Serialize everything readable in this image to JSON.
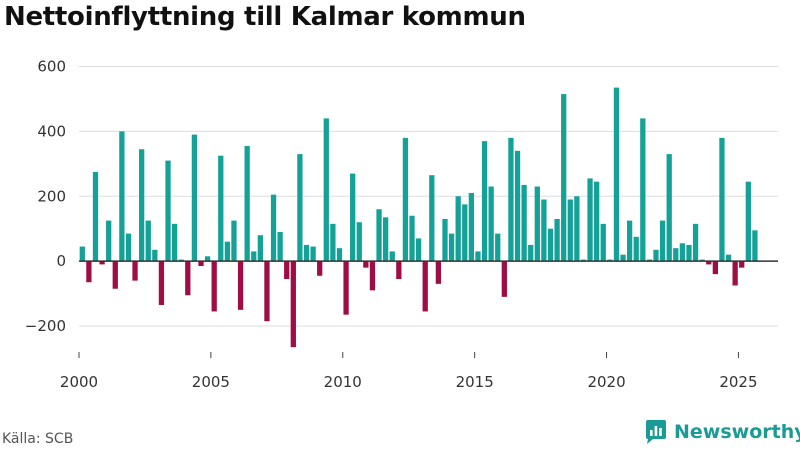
{
  "title": "Nettoinflyttning till Kalmar kommun",
  "source": "Källa: SCB",
  "brand": {
    "name": "Newsworthy",
    "icon": "newsworthy-logo-icon",
    "color": "#1a9b95"
  },
  "colors": {
    "positive": "#14a298",
    "negative": "#9e0e45",
    "grid": "#dddddd",
    "zero": "#333333"
  },
  "chart_data": {
    "type": "bar",
    "frequency": "quarterly",
    "title": "Nettoinflyttning till Kalmar kommun",
    "xlabel": "",
    "ylabel": "",
    "ylim": [
      -280,
      620
    ],
    "yticks": [
      -200,
      0,
      200,
      400,
      600
    ],
    "ytick_labels": [
      "−200",
      "0",
      "200",
      "400",
      "600"
    ],
    "xlim": [
      2000,
      2026.5
    ],
    "xticks": [
      2000,
      2005,
      2010,
      2015,
      2020,
      2025
    ],
    "xtick_labels": [
      "2000",
      "2005",
      "2010",
      "2015",
      "2020",
      "2025"
    ],
    "grid": "horizontal",
    "start_period": "2000 Q1",
    "values": [
      45,
      -65,
      275,
      -10,
      125,
      -85,
      400,
      85,
      -60,
      345,
      125,
      35,
      -135,
      310,
      115,
      5,
      -105,
      390,
      -15,
      15,
      -155,
      325,
      60,
      125,
      -150,
      355,
      30,
      80,
      -185,
      205,
      90,
      -55,
      -265,
      330,
      50,
      45,
      -45,
      440,
      115,
      40,
      -165,
      270,
      120,
      -20,
      -90,
      160,
      135,
      30,
      -55,
      380,
      140,
      70,
      -155,
      265,
      -70,
      130,
      85,
      200,
      175,
      210,
      30,
      370,
      230,
      85,
      -110,
      380,
      340,
      235,
      50,
      230,
      190,
      100,
      130,
      515,
      190,
      200,
      5,
      255,
      245,
      115,
      5,
      535,
      20,
      125,
      75,
      440,
      5,
      35,
      125,
      330,
      40,
      55,
      50,
      115,
      5,
      -10,
      -40,
      380,
      20,
      -75,
      -20,
      245,
      95
    ]
  }
}
